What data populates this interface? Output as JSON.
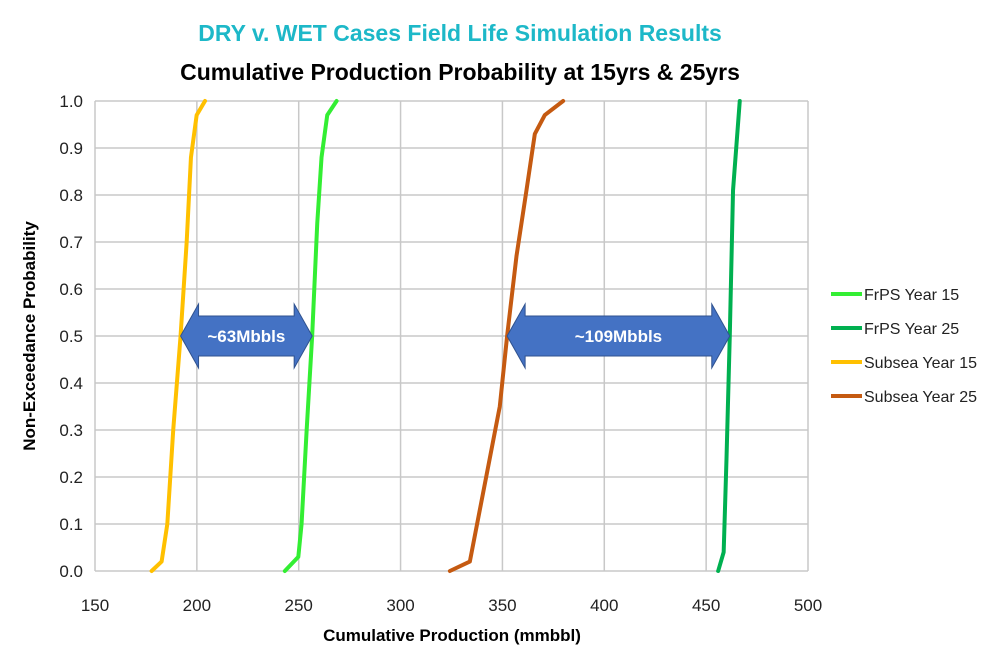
{
  "chart_data": {
    "type": "line",
    "title": "DRY v. WET Cases Field Life Simulation Results",
    "subtitle": "Cumulative Production Probability at 15yrs & 25yrs",
    "xlabel": "Cumulative Production (mmbbl)",
    "ylabel": "Non-Exceedance Probability",
    "xlim": [
      150,
      500
    ],
    "ylim": [
      0,
      1
    ],
    "xticks": [
      "150",
      "200",
      "250",
      "300",
      "350",
      "400",
      "450",
      "500"
    ],
    "yticks": [
      "0.0",
      "0.1",
      "0.2",
      "0.3",
      "0.4",
      "0.5",
      "0.6",
      "0.7",
      "0.8",
      "0.9",
      "1.0"
    ],
    "grid": true,
    "legend_position": "right",
    "series": [
      {
        "name": "FrPS Year 15",
        "color": "#33EE33",
        "points": [
          [
            243.2,
            0
          ],
          [
            249.8,
            0.03
          ],
          [
            251.4,
            0.1
          ],
          [
            253.9,
            0.3
          ],
          [
            256.6,
            0.5
          ],
          [
            259.1,
            0.74
          ],
          [
            261.2,
            0.88
          ],
          [
            264.0,
            0.97
          ],
          [
            268.6,
            1.0
          ]
        ]
      },
      {
        "name": "FrPS Year 25",
        "color": "#00B050",
        "points": [
          [
            455.9,
            0
          ],
          [
            458.6,
            0.04
          ],
          [
            460.0,
            0.24
          ],
          [
            461.6,
            0.5
          ],
          [
            463.2,
            0.81
          ],
          [
            466.5,
            1.0
          ]
        ]
      },
      {
        "name": "Subsea Year 15",
        "color": "#FFC000",
        "points": [
          [
            177.8,
            0
          ],
          [
            182.7,
            0.02
          ],
          [
            185.5,
            0.1
          ],
          [
            188.4,
            0.3
          ],
          [
            192.0,
            0.5
          ],
          [
            195.0,
            0.7
          ],
          [
            197.1,
            0.88
          ],
          [
            199.9,
            0.97
          ],
          [
            204.0,
            1.0
          ]
        ]
      },
      {
        "name": "Subsea Year 25",
        "color": "#C55A11",
        "points": [
          [
            324.2,
            0
          ],
          [
            334.0,
            0.02
          ],
          [
            338.9,
            0.13
          ],
          [
            343.8,
            0.24
          ],
          [
            348.7,
            0.35
          ],
          [
            352.3,
            0.5
          ],
          [
            356.9,
            0.67
          ],
          [
            361.8,
            0.81
          ],
          [
            365.9,
            0.93
          ],
          [
            370.8,
            0.97
          ],
          [
            379.8,
            1.0
          ]
        ]
      }
    ],
    "annotations": [
      {
        "text": "~63Mbbls",
        "from": 192.0,
        "to": 256.6,
        "y": 0.5,
        "color": "#4472C4"
      },
      {
        "text": "~109Mbbls",
        "from": 352.3,
        "to": 461.6,
        "y": 0.5,
        "color": "#4472C4"
      }
    ]
  }
}
